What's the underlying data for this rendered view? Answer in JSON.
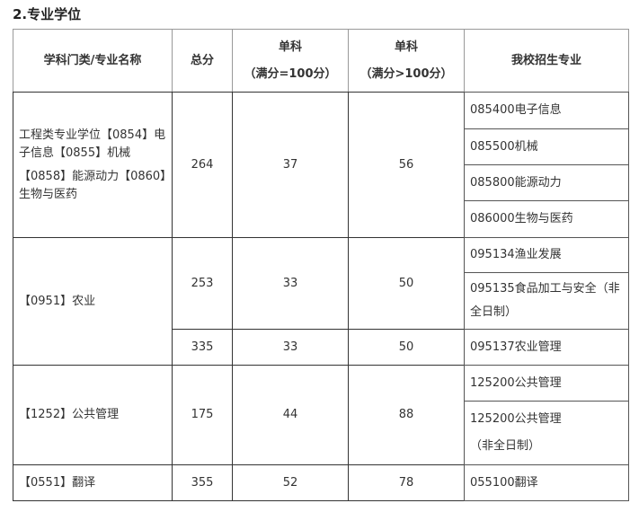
{
  "title": "2.专业学位",
  "headers": {
    "name": "学科门类/专业名称",
    "total": "总分",
    "single1_a": "单科",
    "single1_b": "（满分=100分）",
    "single2_a": "单科",
    "single2_b": "（满分>100分）",
    "majors": "我校招生专业"
  },
  "rows": [
    {
      "name_a": "工程类专业学位【0854】电子信息【0855】机械",
      "name_b": "【0858】能源动力【0860】生物与医药",
      "total": "264",
      "s1": "37",
      "s2": "56",
      "majors": [
        "085400电子信息",
        "085500机械",
        "085800能源动力",
        "086000生物与医药"
      ]
    },
    {
      "name": "【0951】农业",
      "sub": [
        {
          "total": "253",
          "s1": "33",
          "s2": "50"
        },
        {
          "total": "335",
          "s1": "33",
          "s2": "50"
        }
      ],
      "majors": [
        "095134渔业发展",
        "095135食品加工与安全（非全日制）",
        "095137农业管理"
      ]
    },
    {
      "name": "【1252】公共管理",
      "total": "175",
      "s1": "44",
      "s2": "88",
      "majors": [
        "125200公共管理",
        "125200公共管理",
        "（非全日制）"
      ]
    },
    {
      "name": "【0551】翻译",
      "total": "355",
      "s1": "52",
      "s2": "78",
      "majors": [
        "055100翻译"
      ]
    }
  ]
}
